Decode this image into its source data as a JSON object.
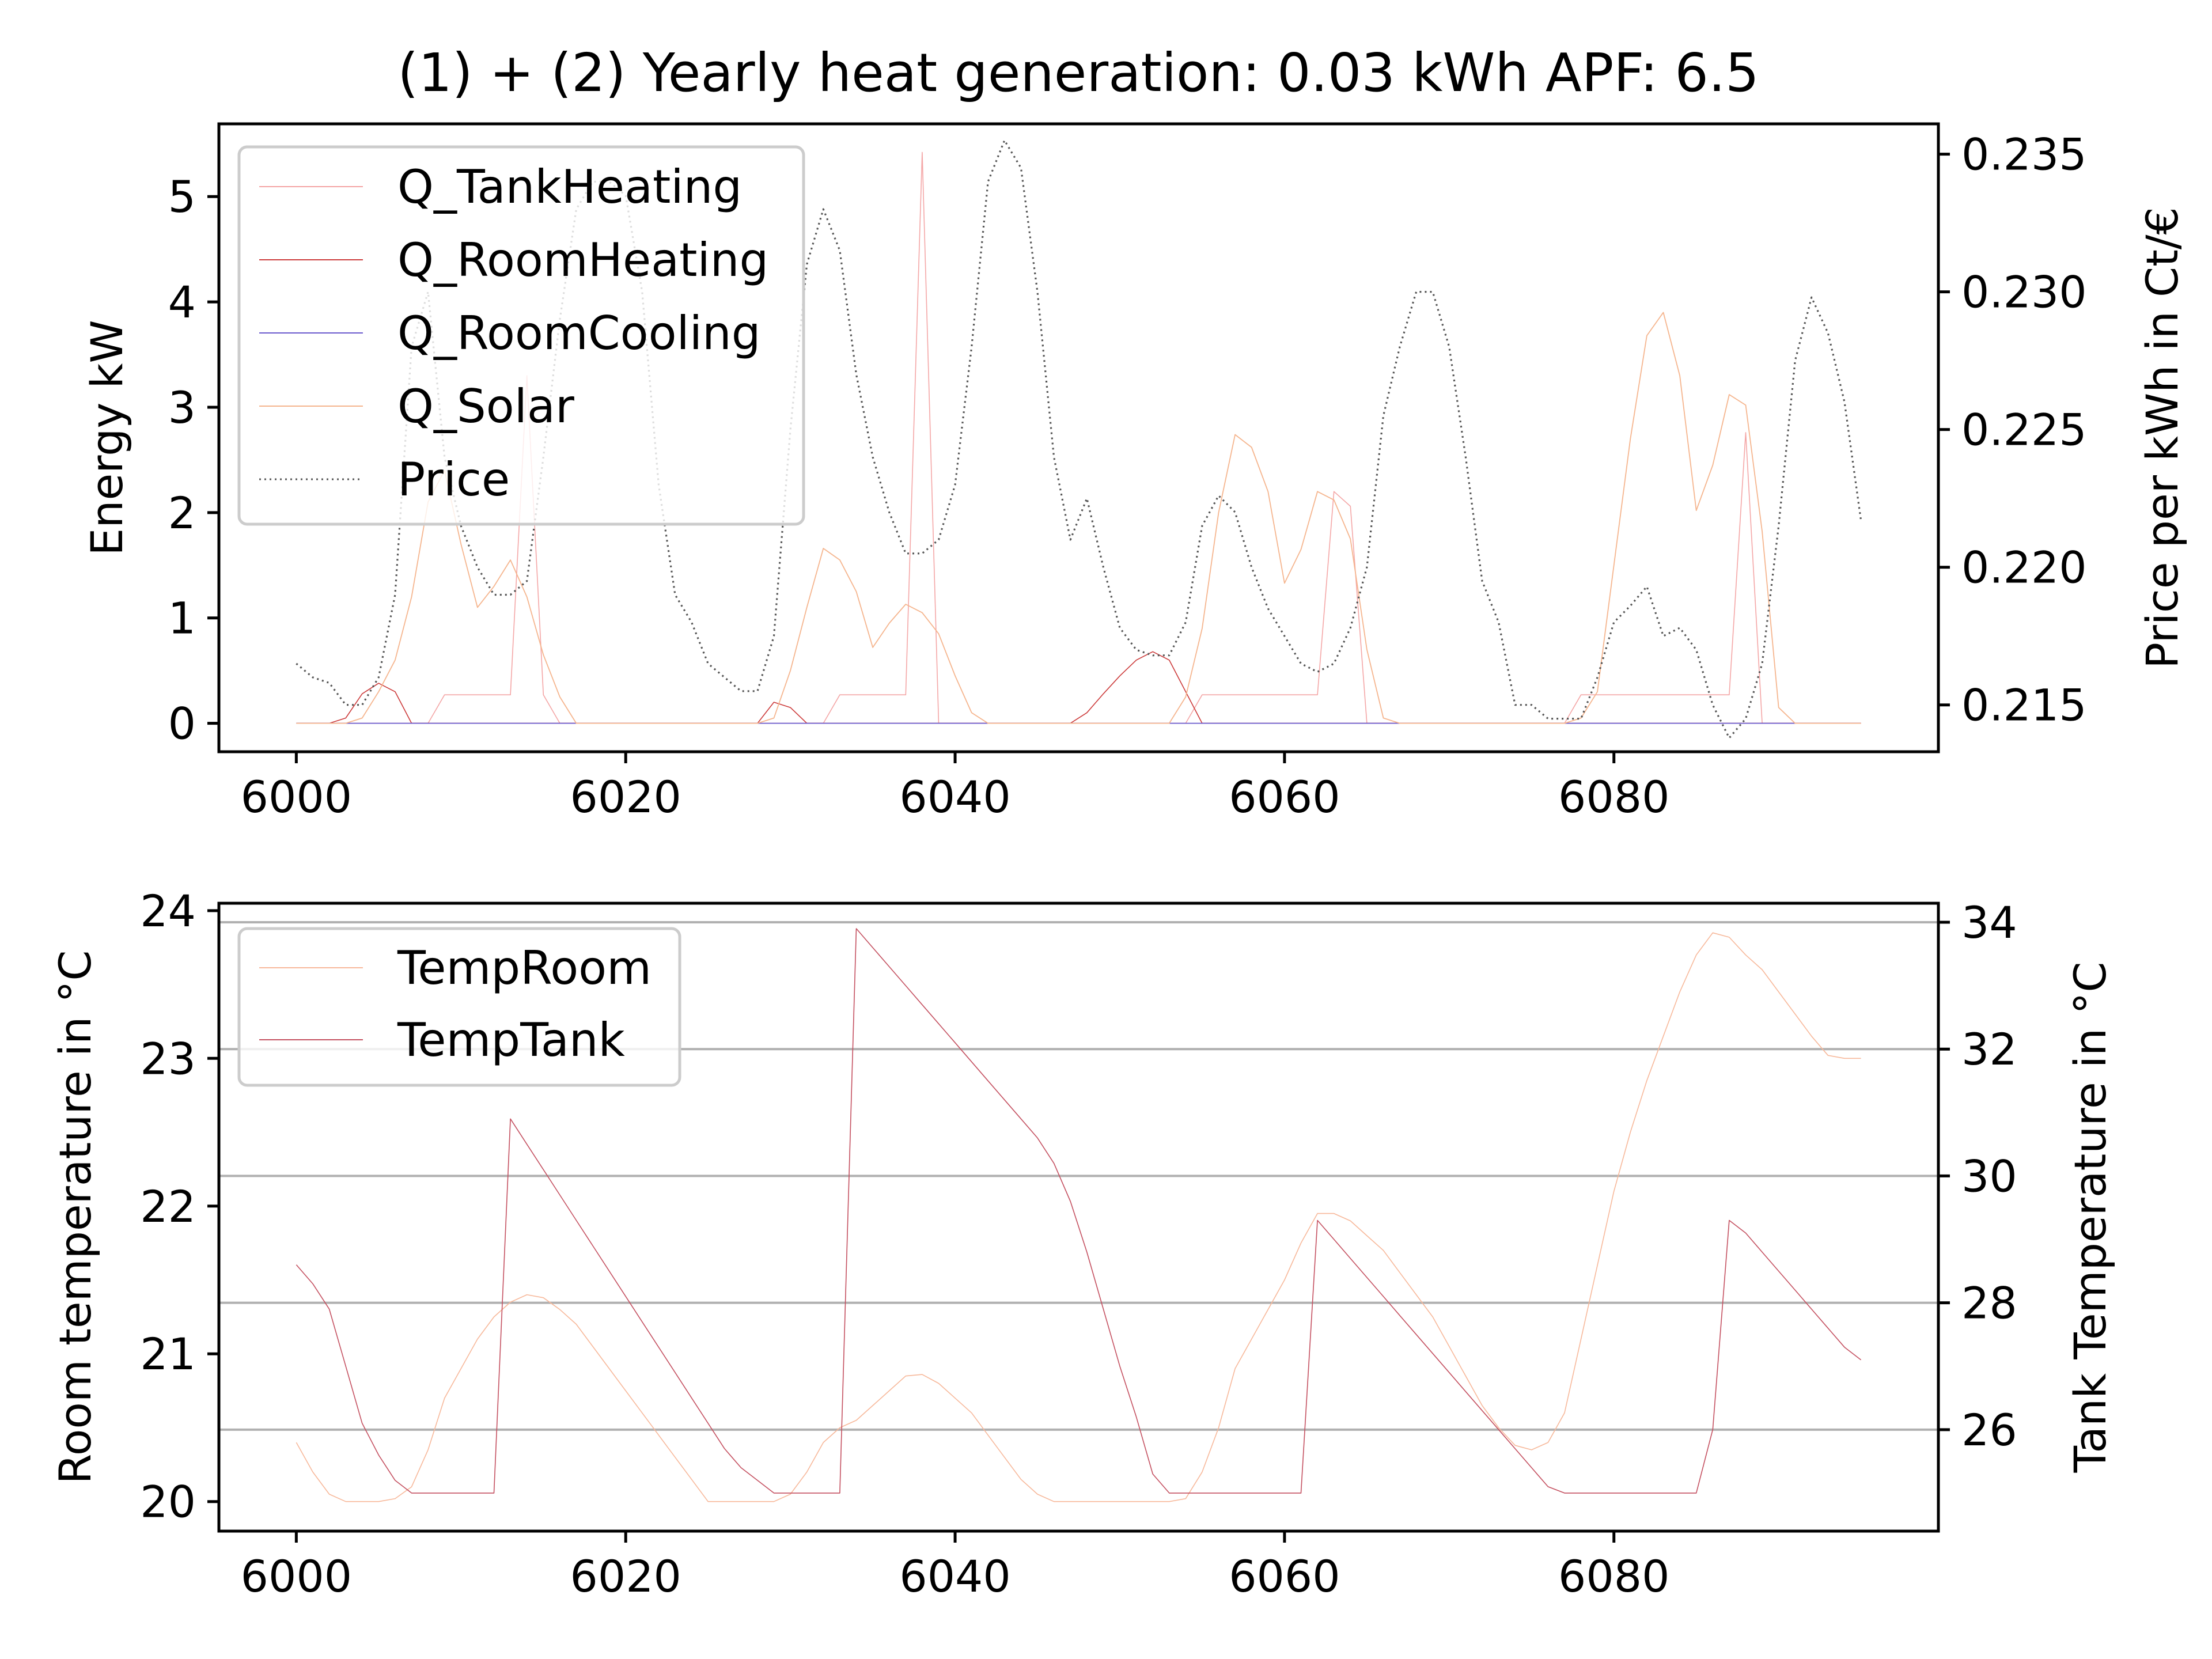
{
  "chart_data": [
    {
      "type": "line",
      "title": "(1) + (2) Yearly heat generation: 0.03 kWh APF: 6.5",
      "xlabel": "",
      "ylabel": "Energy kW",
      "ylabel_right": "Price per kWh in Ct/€",
      "xlim": [
        5995.3,
        6099.7
      ],
      "ylim": [
        -0.27,
        5.69
      ],
      "ylim_right": [
        0.2133,
        0.2361
      ],
      "x_ticks": [
        "6000",
        "6020",
        "6040",
        "6060",
        "6080"
      ],
      "y_ticks": [
        "0",
        "1",
        "2",
        "3",
        "4",
        "5"
      ],
      "y_ticks_right": [
        "0.215",
        "0.220",
        "0.225",
        "0.230",
        "0.235"
      ],
      "legend_position": "upper-left",
      "x": [
        6000,
        6001,
        6002,
        6003,
        6004,
        6005,
        6006,
        6007,
        6008,
        6009,
        6010,
        6011,
        6012,
        6013,
        6014,
        6015,
        6016,
        6017,
        6018,
        6019,
        6020,
        6021,
        6022,
        6023,
        6024,
        6025,
        6026,
        6027,
        6028,
        6029,
        6030,
        6031,
        6032,
        6033,
        6034,
        6035,
        6036,
        6037,
        6038,
        6039,
        6040,
        6041,
        6042,
        6043,
        6044,
        6045,
        6046,
        6047,
        6048,
        6049,
        6050,
        6051,
        6052,
        6053,
        6054,
        6055,
        6056,
        6057,
        6058,
        6059,
        6060,
        6061,
        6062,
        6063,
        6064,
        6065,
        6066,
        6067,
        6068,
        6069,
        6070,
        6071,
        6072,
        6073,
        6074,
        6075,
        6076,
        6077,
        6078,
        6079,
        6080,
        6081,
        6082,
        6083,
        6084,
        6085,
        6086,
        6087,
        6088,
        6089,
        6090,
        6091,
        6092,
        6093,
        6094,
        6095
      ],
      "series": [
        {
          "name": "Q_TankHeating",
          "axis": "left",
          "color": "#f4a6a6",
          "width": 1.6,
          "dash": "",
          "values": [
            0,
            0,
            0,
            0,
            0,
            0,
            0,
            0,
            0,
            0.27,
            0.27,
            0.27,
            0.27,
            0.27,
            3.3,
            0.27,
            0,
            0,
            0,
            0,
            0,
            0,
            0,
            0,
            0,
            0,
            0,
            0,
            0,
            0,
            0,
            0,
            0,
            0.27,
            0.27,
            0.27,
            0.27,
            0.27,
            5.42,
            0,
            0,
            0,
            0,
            0,
            0,
            0,
            0,
            0,
            0,
            0,
            0,
            0,
            0,
            0,
            0,
            0.27,
            0.27,
            0.27,
            0.27,
            0.27,
            0.27,
            0.27,
            0.27,
            2.2,
            2.06,
            0,
            0,
            0,
            0,
            0,
            0,
            0,
            0,
            0,
            0,
            0,
            0,
            0,
            0.27,
            0.27,
            0.27,
            0.27,
            0.27,
            0.27,
            0.27,
            0.27,
            0.27,
            0.27,
            2.76,
            0,
            0,
            0,
            0,
            0,
            0,
            0
          ]
        },
        {
          "name": "Q_RoomHeating",
          "axis": "left",
          "color": "#cc3a3a",
          "width": 1.6,
          "dash": "",
          "values": [
            0,
            0,
            0,
            0.05,
            0.28,
            0.38,
            0.3,
            0,
            0,
            0,
            0,
            0,
            0,
            0,
            0,
            0,
            0,
            0,
            0,
            0,
            0,
            0,
            0,
            0,
            0,
            0,
            0,
            0,
            0,
            0.2,
            0.15,
            0,
            0,
            0,
            0,
            0,
            0,
            0,
            0,
            0,
            0,
            0,
            0,
            0,
            0,
            0,
            0,
            0,
            0.1,
            0.28,
            0.45,
            0.6,
            0.68,
            0.6,
            0.3,
            0,
            0,
            0,
            0,
            0,
            0,
            0,
            0,
            0,
            0,
            0,
            0,
            0,
            0,
            0,
            0,
            0,
            0,
            0,
            0,
            0,
            0,
            0,
            0,
            0,
            0,
            0,
            0,
            0,
            0,
            0,
            0,
            0,
            0,
            0,
            0,
            0,
            0,
            0,
            0,
            0
          ]
        },
        {
          "name": "Q_RoomCooling",
          "axis": "left",
          "color": "#6a5acd",
          "width": 1.8,
          "dash": "",
          "values": [
            0,
            0,
            0,
            0,
            0,
            0,
            0,
            0,
            0,
            0,
            0,
            0,
            0,
            0,
            0,
            0,
            0,
            0,
            0,
            0,
            0,
            0,
            0,
            0,
            0,
            0,
            0,
            0,
            0,
            0,
            0,
            0,
            0,
            0,
            0,
            0,
            0,
            0,
            0,
            0,
            0,
            0,
            0,
            0,
            0,
            0,
            0,
            0,
            0,
            0,
            0,
            0,
            0,
            0,
            0,
            0,
            0,
            0,
            0,
            0,
            0,
            0,
            0,
            0,
            0,
            0,
            0,
            0,
            0,
            0,
            0,
            0,
            0,
            0,
            0,
            0,
            0,
            0,
            0,
            0,
            0,
            0,
            0,
            0,
            0,
            0,
            0,
            0,
            0,
            0,
            0,
            0,
            0,
            0,
            0,
            0
          ]
        },
        {
          "name": "Q_Solar",
          "axis": "left",
          "color": "#f5b58e",
          "width": 1.8,
          "dash": "",
          "values": [
            0,
            0,
            0,
            0,
            0.05,
            0.3,
            0.6,
            1.2,
            2.1,
            2.4,
            1.7,
            1.1,
            1.3,
            1.55,
            1.2,
            0.65,
            0.25,
            0,
            0,
            0,
            0,
            0,
            0,
            0,
            0,
            0,
            0,
            0,
            0,
            0.05,
            0.5,
            1.1,
            1.66,
            1.55,
            1.25,
            0.72,
            0.95,
            1.13,
            1.05,
            0.85,
            0.45,
            0.1,
            0,
            0,
            0,
            0,
            0,
            0,
            0,
            0,
            0,
            0,
            0,
            0,
            0.25,
            0.9,
            2,
            2.74,
            2.62,
            2.2,
            1.33,
            1.65,
            2.2,
            2.12,
            1.75,
            0.7,
            0.05,
            0,
            0,
            0,
            0,
            0,
            0,
            0,
            0,
            0,
            0,
            0,
            0.05,
            0.3,
            1.5,
            2.7,
            3.68,
            3.9,
            3.3,
            2.02,
            2.45,
            3.12,
            3.02,
            1.82,
            0.15,
            0,
            0,
            0,
            0,
            0
          ]
        },
        {
          "name": "Price",
          "axis": "right",
          "color": "#555555",
          "width": 3.2,
          "dash": "3 6",
          "values": [
            0.2165,
            0.216,
            0.2158,
            0.215,
            0.215,
            0.216,
            0.219,
            0.228,
            0.23,
            0.224,
            0.2215,
            0.22,
            0.219,
            0.219,
            0.2195,
            0.224,
            0.229,
            0.233,
            0.234,
            0.234,
            0.2335,
            0.23,
            0.223,
            0.219,
            0.218,
            0.2165,
            0.216,
            0.2155,
            0.2155,
            0.2175,
            0.225,
            0.231,
            0.233,
            0.2315,
            0.227,
            0.224,
            0.222,
            0.2205,
            0.2205,
            0.221,
            0.223,
            0.228,
            0.234,
            0.2355,
            0.2345,
            0.23,
            0.224,
            0.221,
            0.2225,
            0.22,
            0.2178,
            0.217,
            0.2168,
            0.2168,
            0.218,
            0.2215,
            0.2226,
            0.222,
            0.22,
            0.2185,
            0.2175,
            0.2165,
            0.2162,
            0.2165,
            0.2178,
            0.22,
            0.2255,
            0.228,
            0.23,
            0.23,
            0.228,
            0.224,
            0.2195,
            0.218,
            0.215,
            0.215,
            0.2145,
            0.2145,
            0.2145,
            0.216,
            0.218,
            0.2186,
            0.2193,
            0.2175,
            0.2178,
            0.217,
            0.215,
            0.2138,
            0.2145,
            0.2165,
            0.2215,
            0.2275,
            0.2298,
            0.2285,
            0.226,
            0.2217
          ]
        }
      ]
    },
    {
      "type": "line",
      "xlabel": "",
      "ylabel": "Room temperature in °C",
      "ylabel_right": "Tank Temperature in °C",
      "xlim": [
        5995.3,
        6099.7
      ],
      "ylim": [
        19.8,
        24.05
      ],
      "ylim_right": [
        24.4,
        34.3
      ],
      "x_ticks": [
        "6000",
        "6020",
        "6040",
        "6060",
        "6080"
      ],
      "y_ticks": [
        "20",
        "21",
        "22",
        "23",
        "24"
      ],
      "y_ticks_right": [
        "26",
        "28",
        "30",
        "32",
        "34"
      ],
      "grid": "right-axis horizontal",
      "legend_position": "upper-left",
      "x": [
        6000,
        6001,
        6002,
        6003,
        6004,
        6005,
        6006,
        6007,
        6008,
        6009,
        6010,
        6011,
        6012,
        6013,
        6014,
        6015,
        6016,
        6017,
        6018,
        6019,
        6020,
        6021,
        6022,
        6023,
        6024,
        6025,
        6026,
        6027,
        6028,
        6029,
        6030,
        6031,
        6032,
        6033,
        6034,
        6035,
        6036,
        6037,
        6038,
        6039,
        6040,
        6041,
        6042,
        6043,
        6044,
        6045,
        6046,
        6047,
        6048,
        6049,
        6050,
        6051,
        6052,
        6053,
        6054,
        6055,
        6056,
        6057,
        6058,
        6059,
        6060,
        6061,
        6062,
        6063,
        6064,
        6065,
        6066,
        6067,
        6068,
        6069,
        6070,
        6071,
        6072,
        6073,
        6074,
        6075,
        6076,
        6077,
        6078,
        6079,
        6080,
        6081,
        6082,
        6083,
        6084,
        6085,
        6086,
        6087,
        6088,
        6089,
        6090,
        6091,
        6092,
        6093,
        6094,
        6095
      ],
      "series": [
        {
          "name": "TempRoom",
          "axis": "left",
          "color": "#f7b89a",
          "width": 1.6,
          "dash": "",
          "values": [
            20.4,
            20.2,
            20.05,
            20,
            20,
            20,
            20.02,
            20.1,
            20.35,
            20.7,
            20.9,
            21.1,
            21.25,
            21.35,
            21.4,
            21.38,
            21.3,
            21.2,
            21.05,
            20.9,
            20.75,
            20.6,
            20.45,
            20.3,
            20.15,
            20,
            20,
            20,
            20,
            20,
            20.05,
            20.2,
            20.4,
            20.5,
            20.55,
            20.65,
            20.75,
            20.85,
            20.86,
            20.8,
            20.7,
            20.6,
            20.45,
            20.3,
            20.15,
            20.05,
            20,
            20,
            20,
            20,
            20,
            20,
            20,
            20,
            20.02,
            20.2,
            20.5,
            20.9,
            21.1,
            21.3,
            21.5,
            21.75,
            21.95,
            21.95,
            21.9,
            21.8,
            21.7,
            21.55,
            21.4,
            21.25,
            21.05,
            20.85,
            20.65,
            20.5,
            20.38,
            20.35,
            20.4,
            20.6,
            21.1,
            21.6,
            22.1,
            22.5,
            22.85,
            23.15,
            23.45,
            23.7,
            23.85,
            23.82,
            23.7,
            23.6,
            23.45,
            23.3,
            23.15,
            23.02,
            23,
            23
          ]
        },
        {
          "name": "TempTank",
          "axis": "right",
          "color": "#c45060",
          "width": 1.6,
          "dash": "",
          "values": [
            28.6,
            28.3,
            27.9,
            27,
            26.1,
            25.6,
            25.2,
            25,
            25,
            25,
            25,
            25,
            25,
            30.9,
            30.5,
            30.1,
            29.7,
            29.3,
            28.9,
            28.5,
            28.1,
            27.7,
            27.3,
            26.9,
            26.5,
            26.1,
            25.7,
            25.4,
            25.2,
            25,
            25,
            25,
            25,
            25,
            33.9,
            33.6,
            33.3,
            33,
            32.7,
            32.4,
            32.1,
            31.8,
            31.5,
            31.2,
            30.9,
            30.6,
            30.2,
            29.6,
            28.8,
            27.9,
            27,
            26.2,
            25.3,
            25,
            25,
            25,
            25,
            25,
            25,
            25,
            25,
            25,
            29.3,
            29,
            28.7,
            28.4,
            28.1,
            27.8,
            27.5,
            27.2,
            26.9,
            26.6,
            26.3,
            26,
            25.7,
            25.4,
            25.1,
            25,
            25,
            25,
            25,
            25,
            25,
            25,
            25,
            25,
            26,
            29.3,
            29.1,
            28.8,
            28.5,
            28.2,
            27.9,
            27.6,
            27.3,
            27.1
          ]
        }
      ]
    }
  ]
}
